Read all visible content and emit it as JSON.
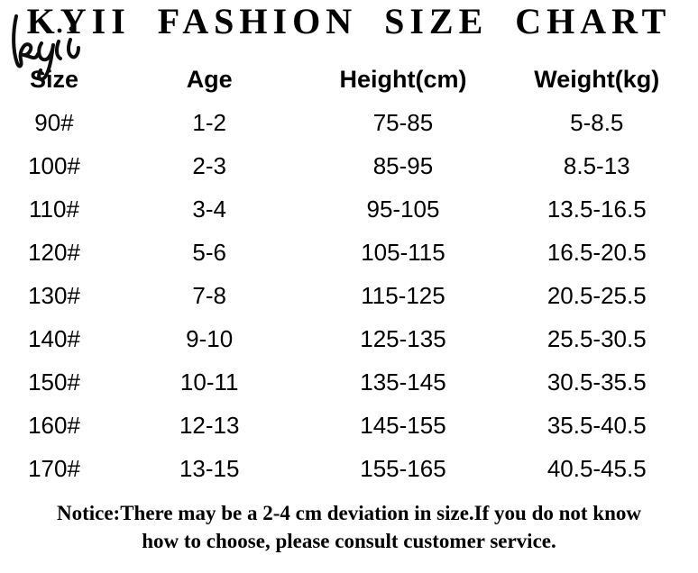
{
  "brand": {
    "logo_script": "kyii"
  },
  "title": "KYII FASHION SIZE CHART",
  "table": {
    "headers": [
      "Size",
      "Age",
      "Height(cm)",
      "Weight(kg)"
    ],
    "rows": [
      [
        "90#",
        "1-2",
        "75-85",
        "5-8.5"
      ],
      [
        "100#",
        "2-3",
        "85-95",
        "8.5-13"
      ],
      [
        "110#",
        "3-4",
        "95-105",
        "13.5-16.5"
      ],
      [
        "120#",
        "5-6",
        "105-115",
        "16.5-20.5"
      ],
      [
        "130#",
        "7-8",
        "115-125",
        "20.5-25.5"
      ],
      [
        "140#",
        "9-10",
        "125-135",
        "25.5-30.5"
      ],
      [
        "150#",
        "10-11",
        "135-145",
        "30.5-35.5"
      ],
      [
        "160#",
        "12-13",
        "145-155",
        "35.5-40.5"
      ],
      [
        "170#",
        "13-15",
        "155-165",
        "40.5-45.5"
      ]
    ]
  },
  "notice": {
    "line1": "Notice:There may be a 2-4 cm deviation in size.If you do not know",
    "line2": "how to choose, please consult customer service."
  },
  "colors": {
    "text": "#000000",
    "background": "#ffffff"
  },
  "chart_data": {
    "type": "table",
    "title": "KYII FASHION SIZE CHART",
    "columns": [
      "Size",
      "Age",
      "Height(cm)",
      "Weight(kg)"
    ],
    "rows": [
      [
        "90#",
        "1-2",
        "75-85",
        "5-8.5"
      ],
      [
        "100#",
        "2-3",
        "85-95",
        "8.5-13"
      ],
      [
        "110#",
        "3-4",
        "95-105",
        "13.5-16.5"
      ],
      [
        "120#",
        "5-6",
        "105-115",
        "16.5-20.5"
      ],
      [
        "130#",
        "7-8",
        "115-125",
        "20.5-25.5"
      ],
      [
        "140#",
        "9-10",
        "125-135",
        "25.5-30.5"
      ],
      [
        "150#",
        "10-11",
        "135-145",
        "30.5-35.5"
      ],
      [
        "160#",
        "12-13",
        "145-155",
        "35.5-40.5"
      ],
      [
        "170#",
        "13-15",
        "155-165",
        "40.5-45.5"
      ]
    ],
    "footnote": "Notice:There may be a 2-4 cm deviation in size.If you do not know how to choose, please consult customer service."
  }
}
